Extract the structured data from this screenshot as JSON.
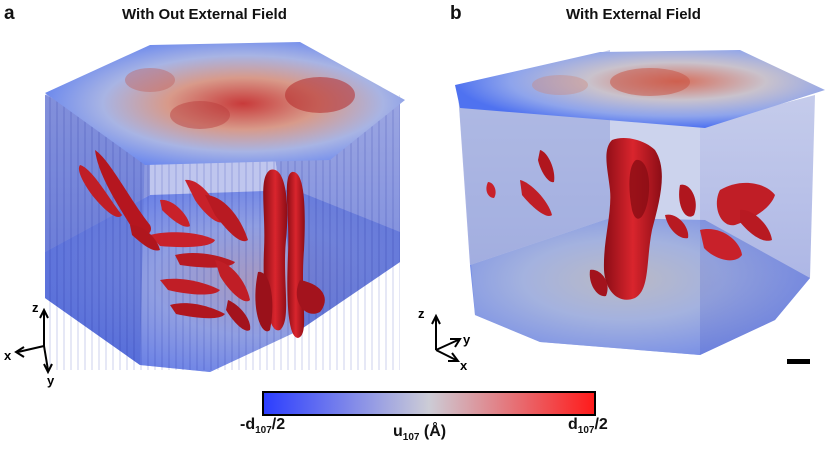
{
  "panels": [
    {
      "letter": "a",
      "title": "With Out External Field"
    },
    {
      "letter": "b",
      "title": "With External Field"
    }
  ],
  "axes": {
    "z": "z",
    "x": "x",
    "y": "y"
  },
  "colorbar": {
    "min_label": {
      "prefix": "-d",
      "sub": "107",
      "suffix": "/2"
    },
    "center_label": {
      "prefix": "u",
      "sub": "107",
      "suffix": " (Å)"
    },
    "max_label": {
      "prefix": "d",
      "sub": "107",
      "suffix": "/2"
    },
    "colors": {
      "low": "#2b3dff",
      "mid": "#ccccd6",
      "high": "#ff1a1a"
    }
  },
  "colors": {
    "field_blue": "#3b62e6",
    "domain_red": "#c21a22",
    "dark_red": "#7a0a12"
  }
}
